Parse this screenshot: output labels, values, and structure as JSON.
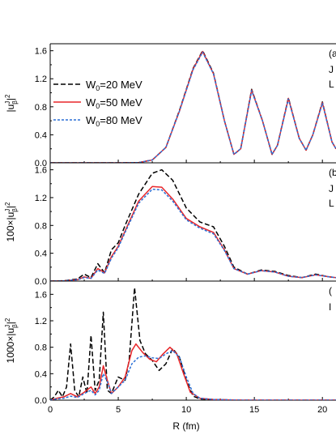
{
  "chart_data": [
    {
      "type": "line",
      "panel": "top",
      "panel_tag": "(a",
      "side_text": [
        "J",
        "L"
      ],
      "ylabel": "|u",
      "ylabel_sup": "J",
      "ylabel_sub": "β",
      "ylabel_tail": "|",
      "ylabel_exp": "2",
      "xlim": [
        0,
        21
      ],
      "ylim": [
        0,
        1.7
      ],
      "yticks": [
        "0.0",
        "0.4",
        "0.8",
        "1.2",
        "1.6"
      ],
      "ytick_values": [
        0,
        0.4,
        0.8,
        1.2,
        1.6
      ],
      "legend": {
        "placement": "left",
        "entries": [
          {
            "pre": "W",
            "sub": "0",
            "post": "=20 MeV"
          },
          {
            "pre": "W",
            "sub": "0",
            "post": "=50 MeV"
          },
          {
            "pre": "W",
            "sub": "0",
            "post": "=80 MeV"
          }
        ]
      },
      "series": [
        {
          "style": "black-dash",
          "color": "#000000",
          "points": [
            [
              0,
              0
            ],
            [
              5,
              0
            ],
            [
              6.5,
              0.003
            ],
            [
              7.5,
              0.04
            ],
            [
              8.5,
              0.22
            ],
            [
              9.5,
              0.75
            ],
            [
              10.5,
              1.35
            ],
            [
              11.2,
              1.6
            ],
            [
              12,
              1.28
            ],
            [
              12.8,
              0.6
            ],
            [
              13.5,
              0.12
            ],
            [
              14,
              0.2
            ],
            [
              14.8,
              1.05
            ],
            [
              15.6,
              0.6
            ],
            [
              16.3,
              0.12
            ],
            [
              16.7,
              0.25
            ],
            [
              17.5,
              0.93
            ],
            [
              18.3,
              0.35
            ],
            [
              18.8,
              0.18
            ],
            [
              19.3,
              0.4
            ],
            [
              20,
              0.87
            ],
            [
              20.7,
              0.3
            ],
            [
              21,
              0.2
            ]
          ]
        },
        {
          "style": "red-solid",
          "color": "#e8262a",
          "points": [
            [
              0,
              0
            ],
            [
              5,
              0
            ],
            [
              6.5,
              0.003
            ],
            [
              7.5,
              0.04
            ],
            [
              8.5,
              0.22
            ],
            [
              9.5,
              0.74
            ],
            [
              10.5,
              1.34
            ],
            [
              11.2,
              1.59
            ],
            [
              12,
              1.27
            ],
            [
              12.8,
              0.6
            ],
            [
              13.5,
              0.12
            ],
            [
              14,
              0.2
            ],
            [
              14.8,
              1.04
            ],
            [
              15.6,
              0.6
            ],
            [
              16.3,
              0.12
            ],
            [
              16.7,
              0.25
            ],
            [
              17.5,
              0.92
            ],
            [
              18.3,
              0.35
            ],
            [
              18.8,
              0.18
            ],
            [
              19.3,
              0.4
            ],
            [
              20,
              0.86
            ],
            [
              20.7,
              0.3
            ],
            [
              21,
              0.2
            ]
          ]
        },
        {
          "style": "blue-dash",
          "color": "#2a6fd6",
          "points": [
            [
              0,
              0
            ],
            [
              5,
              0
            ],
            [
              6.5,
              0.003
            ],
            [
              7.5,
              0.04
            ],
            [
              8.5,
              0.22
            ],
            [
              9.5,
              0.74
            ],
            [
              10.5,
              1.33
            ],
            [
              11.2,
              1.58
            ],
            [
              12,
              1.27
            ],
            [
              12.8,
              0.6
            ],
            [
              13.5,
              0.12
            ],
            [
              14,
              0.2
            ],
            [
              14.8,
              1.03
            ],
            [
              15.6,
              0.6
            ],
            [
              16.3,
              0.12
            ],
            [
              16.7,
              0.25
            ],
            [
              17.5,
              0.91
            ],
            [
              18.3,
              0.35
            ],
            [
              18.8,
              0.18
            ],
            [
              19.3,
              0.4
            ],
            [
              20,
              0.85
            ],
            [
              20.7,
              0.3
            ],
            [
              21,
              0.2
            ]
          ]
        }
      ]
    },
    {
      "type": "line",
      "panel": "middle",
      "panel_tag": "(b",
      "side_text": [
        "J",
        "L"
      ],
      "ylabel": "100×|u",
      "ylabel_sup": "J",
      "ylabel_sub": "β",
      "ylabel_tail": "|",
      "ylabel_exp": "2",
      "xlim": [
        0,
        21
      ],
      "ylim": [
        0,
        1.7
      ],
      "yticks": [
        "0.0",
        "0.4",
        "0.8",
        "1.2",
        "1.6"
      ],
      "ytick_values": [
        0,
        0.4,
        0.8,
        1.2,
        1.6
      ],
      "series": [
        {
          "style": "black-dash",
          "color": "#000000",
          "points": [
            [
              0,
              0
            ],
            [
              1,
              0.005
            ],
            [
              2,
              0.03
            ],
            [
              2.5,
              0.1
            ],
            [
              3,
              0.05
            ],
            [
              3.5,
              0.25
            ],
            [
              4,
              0.12
            ],
            [
              4.5,
              0.45
            ],
            [
              5,
              0.55
            ],
            [
              5.5,
              0.8
            ],
            [
              6.5,
              1.25
            ],
            [
              7.5,
              1.55
            ],
            [
              8.2,
              1.6
            ],
            [
              9,
              1.45
            ],
            [
              10,
              1.05
            ],
            [
              11,
              0.85
            ],
            [
              12,
              0.78
            ],
            [
              12.8,
              0.5
            ],
            [
              13.5,
              0.2
            ],
            [
              14.5,
              0.1
            ],
            [
              15.5,
              0.16
            ],
            [
              16.5,
              0.14
            ],
            [
              17.5,
              0.08
            ],
            [
              18.5,
              0.05
            ],
            [
              19.5,
              0.1
            ],
            [
              20.5,
              0.06
            ],
            [
              21,
              0.05
            ]
          ]
        },
        {
          "style": "red-solid",
          "color": "#e8262a",
          "points": [
            [
              0,
              0
            ],
            [
              1,
              0.003
            ],
            [
              2,
              0.02
            ],
            [
              2.5,
              0.06
            ],
            [
              3,
              0.04
            ],
            [
              3.5,
              0.18
            ],
            [
              4,
              0.12
            ],
            [
              4.5,
              0.35
            ],
            [
              5,
              0.5
            ],
            [
              5.5,
              0.72
            ],
            [
              6.5,
              1.15
            ],
            [
              7.5,
              1.36
            ],
            [
              8.2,
              1.35
            ],
            [
              9,
              1.18
            ],
            [
              10,
              0.9
            ],
            [
              11,
              0.78
            ],
            [
              12,
              0.7
            ],
            [
              12.8,
              0.45
            ],
            [
              13.5,
              0.18
            ],
            [
              14.5,
              0.1
            ],
            [
              15.5,
              0.15
            ],
            [
              16.5,
              0.13
            ],
            [
              17.5,
              0.07
            ],
            [
              18.5,
              0.05
            ],
            [
              19.5,
              0.09
            ],
            [
              20.5,
              0.06
            ],
            [
              21,
              0.05
            ]
          ]
        },
        {
          "style": "blue-dash",
          "color": "#2a6fd6",
          "points": [
            [
              0,
              0
            ],
            [
              1,
              0.003
            ],
            [
              2,
              0.02
            ],
            [
              2.5,
              0.05
            ],
            [
              3,
              0.04
            ],
            [
              3.5,
              0.16
            ],
            [
              4,
              0.11
            ],
            [
              4.5,
              0.33
            ],
            [
              5,
              0.48
            ],
            [
              5.5,
              0.7
            ],
            [
              6.5,
              1.12
            ],
            [
              7.5,
              1.32
            ],
            [
              8.2,
              1.31
            ],
            [
              9,
              1.15
            ],
            [
              10,
              0.88
            ],
            [
              11,
              0.76
            ],
            [
              12,
              0.68
            ],
            [
              12.8,
              0.44
            ],
            [
              13.5,
              0.18
            ],
            [
              14.5,
              0.1
            ],
            [
              15.5,
              0.15
            ],
            [
              16.5,
              0.13
            ],
            [
              17.5,
              0.07
            ],
            [
              18.5,
              0.05
            ],
            [
              19.5,
              0.09
            ],
            [
              20.5,
              0.06
            ],
            [
              21,
              0.05
            ]
          ]
        }
      ]
    },
    {
      "type": "line",
      "panel": "bottom",
      "panel_tag": "(",
      "side_text": [
        "I"
      ],
      "ylabel": "1000×|u",
      "ylabel_sup": "J",
      "ylabel_sub": "β",
      "ylabel_tail": "|",
      "ylabel_exp": "2",
      "xlabel": "R (fm)",
      "xlim": [
        0,
        21
      ],
      "ylim": [
        0,
        1.8
      ],
      "xticks": [
        "0",
        "5",
        "10",
        "15",
        "20"
      ],
      "xtick_values": [
        0,
        5,
        10,
        15,
        20
      ],
      "yticks": [
        "0.0",
        "0.4",
        "0.8",
        "1.2",
        "1.6"
      ],
      "ytick_values": [
        0,
        0.4,
        0.8,
        1.2,
        1.6
      ],
      "series": [
        {
          "style": "black-dash",
          "color": "#000000",
          "points": [
            [
              0,
              0
            ],
            [
              0.3,
              0.05
            ],
            [
              0.6,
              0.15
            ],
            [
              0.9,
              0.05
            ],
            [
              1.2,
              0.2
            ],
            [
              1.5,
              0.85
            ],
            [
              1.8,
              0.15
            ],
            [
              2.1,
              0.05
            ],
            [
              2.4,
              0.35
            ],
            [
              2.7,
              0.1
            ],
            [
              3,
              0.98
            ],
            [
              3.3,
              0.15
            ],
            [
              3.6,
              0.3
            ],
            [
              3.9,
              1.33
            ],
            [
              4.2,
              0.15
            ],
            [
              4.5,
              0.1
            ],
            [
              5,
              0.35
            ],
            [
              5.5,
              0.3
            ],
            [
              5.8,
              0.6
            ],
            [
              6.2,
              1.7
            ],
            [
              6.6,
              0.9
            ],
            [
              7,
              0.7
            ],
            [
              7.5,
              0.6
            ],
            [
              8,
              0.45
            ],
            [
              8.5,
              0.55
            ],
            [
              9,
              0.78
            ],
            [
              9.5,
              0.65
            ],
            [
              10,
              0.3
            ],
            [
              10.5,
              0.06
            ],
            [
              11,
              0.02
            ],
            [
              12,
              0.01
            ],
            [
              14,
              0
            ],
            [
              21,
              0
            ]
          ]
        },
        {
          "style": "red-solid",
          "color": "#e8262a",
          "points": [
            [
              0,
              0
            ],
            [
              0.5,
              0.03
            ],
            [
              1,
              0.05
            ],
            [
              1.5,
              0.1
            ],
            [
              2,
              0.05
            ],
            [
              2.5,
              0.12
            ],
            [
              3,
              0.2
            ],
            [
              3.3,
              0.1
            ],
            [
              3.6,
              0.2
            ],
            [
              3.9,
              0.52
            ],
            [
              4.2,
              0.3
            ],
            [
              4.5,
              0.1
            ],
            [
              5,
              0.2
            ],
            [
              5.5,
              0.35
            ],
            [
              6,
              0.75
            ],
            [
              6.3,
              0.85
            ],
            [
              6.8,
              0.72
            ],
            [
              7.3,
              0.62
            ],
            [
              7.8,
              0.58
            ],
            [
              8.3,
              0.7
            ],
            [
              8.8,
              0.8
            ],
            [
              9.3,
              0.7
            ],
            [
              9.8,
              0.4
            ],
            [
              10.3,
              0.12
            ],
            [
              11,
              0.03
            ],
            [
              12,
              0.01
            ],
            [
              14,
              0
            ],
            [
              21,
              0
            ]
          ]
        },
        {
          "style": "blue-dash",
          "color": "#2a6fd6",
          "points": [
            [
              0,
              0
            ],
            [
              0.5,
              0.02
            ],
            [
              1,
              0.03
            ],
            [
              1.5,
              0.06
            ],
            [
              2,
              0.04
            ],
            [
              2.5,
              0.1
            ],
            [
              3,
              0.15
            ],
            [
              3.3,
              0.08
            ],
            [
              3.6,
              0.15
            ],
            [
              3.9,
              0.4
            ],
            [
              4.2,
              0.28
            ],
            [
              4.5,
              0.1
            ],
            [
              5,
              0.2
            ],
            [
              5.5,
              0.3
            ],
            [
              6,
              0.55
            ],
            [
              6.5,
              0.65
            ],
            [
              7,
              0.67
            ],
            [
              7.5,
              0.64
            ],
            [
              8,
              0.63
            ],
            [
              8.5,
              0.7
            ],
            [
              9,
              0.75
            ],
            [
              9.5,
              0.65
            ],
            [
              10,
              0.35
            ],
            [
              10.5,
              0.1
            ],
            [
              11,
              0.03
            ],
            [
              12,
              0.01
            ],
            [
              14,
              0
            ],
            [
              21,
              0
            ]
          ]
        }
      ]
    }
  ]
}
